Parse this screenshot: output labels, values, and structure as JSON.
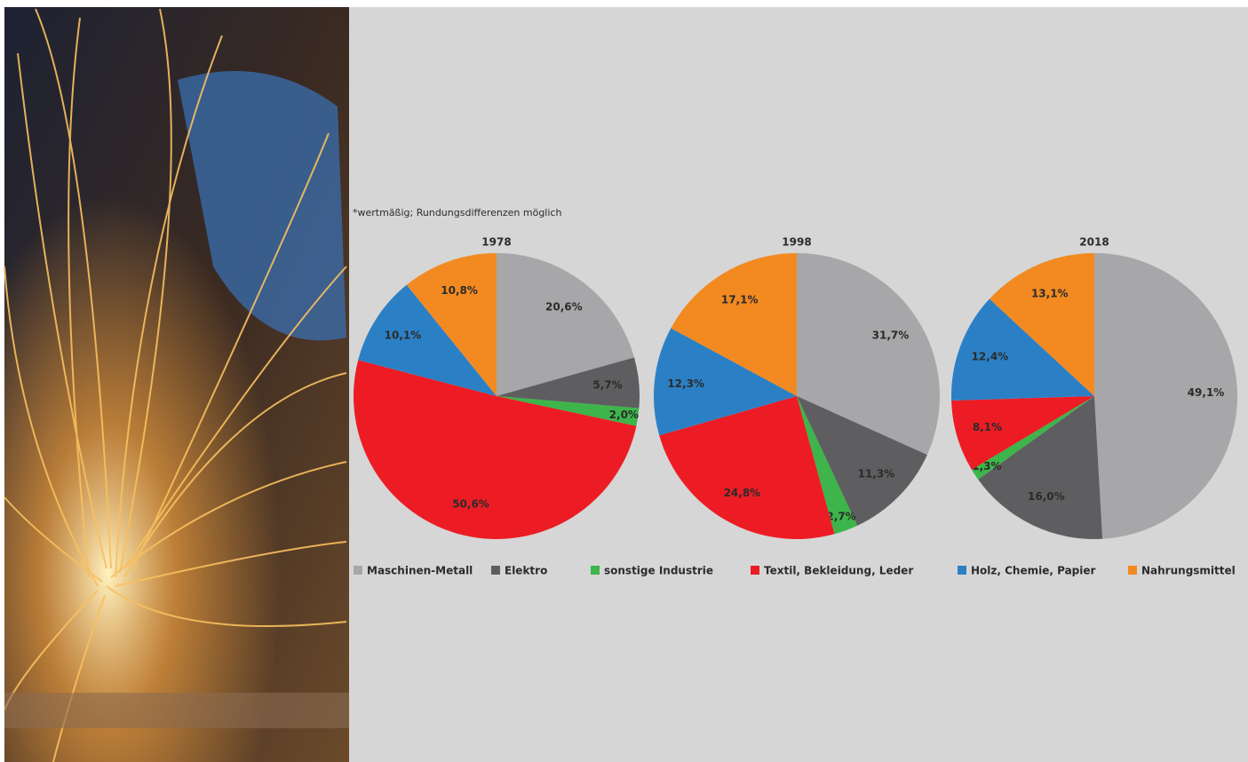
{
  "note": "*wertmäßig; Rundungsdifferenzen möglich",
  "legend": {
    "categories": [
      "Maschinen-Metall",
      "Elektro",
      "sonstige Industrie",
      "Textil, Bekleidung, Leder",
      "Holz, Chemie, Papier",
      "Nahrungsmittel"
    ],
    "colors": [
      "#a7a7a9",
      "#5e5e60",
      "#3db54a",
      "#ed1c24",
      "#2b80c5",
      "#f38a21"
    ]
  },
  "chart_data": [
    {
      "type": "pie",
      "title": "1978",
      "values": [
        20.6,
        5.7,
        2.0,
        50.6,
        10.1,
        10.8
      ],
      "value_labels": [
        "20,6%",
        "5,7%",
        "2,0%",
        "50,6%",
        "10,1%",
        "10,8%"
      ]
    },
    {
      "type": "pie",
      "title": "1998",
      "values": [
        31.7,
        11.3,
        2.7,
        24.8,
        12.3,
        17.1
      ],
      "value_labels": [
        "31,7%",
        "11,3%",
        "2,7%",
        "24,8%",
        "12,3%",
        "17,1%"
      ]
    },
    {
      "type": "pie",
      "title": "2018",
      "values": [
        49.1,
        16.0,
        1.3,
        8.1,
        12.4,
        13.1
      ],
      "value_labels": [
        "49,1%",
        "16,0%",
        "1,3%",
        "8,1%",
        "12,4%",
        "13,1%"
      ]
    }
  ]
}
